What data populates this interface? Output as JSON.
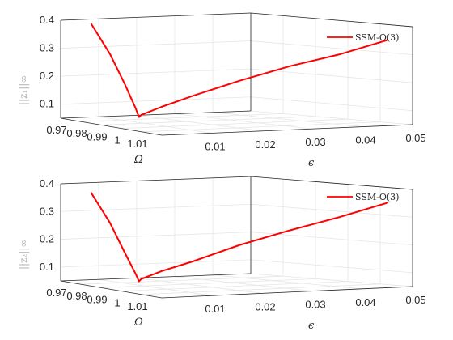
{
  "chart_data": [
    {
      "type": "line",
      "zlabel": "||z₁||∞",
      "xlabel": "Ω",
      "ylabel": "ϵ",
      "xlim": [
        0.97,
        1.02
      ],
      "ylim": [
        0,
        0.05
      ],
      "zlim": [
        0.05,
        0.4
      ],
      "xticks": [
        "0.97",
        "0.98",
        "0.99",
        "1",
        "1.01"
      ],
      "yticks": [
        "0.01",
        "0.02",
        "0.03",
        "0.04",
        "0.05"
      ],
      "zticks": [
        "0.1",
        "0.2",
        "0.3",
        "0.4"
      ],
      "grid": true,
      "legend_position": "top-right",
      "series": [
        {
          "name": "SSM-O(3)",
          "color": "#ff0000",
          "points": [
            [
              0.9815,
              0.0018,
              0.4
            ],
            [
              0.9885,
              0.0028,
              0.3
            ],
            [
              0.9945,
              0.0033,
              0.2
            ],
            [
              0.9992,
              0.0035,
              0.12
            ],
            [
              1.0015,
              0.0032,
              0.09
            ],
            [
              1.003,
              0.003,
              0.1
            ],
            [
              1.006,
              0.006,
              0.13
            ],
            [
              1.0094,
              0.011,
              0.17
            ],
            [
              1.0112,
              0.02,
              0.22
            ],
            [
              1.0118,
              0.03,
              0.265
            ],
            [
              1.0121,
              0.04,
              0.3
            ],
            [
              1.0123,
              0.05,
              0.345
            ]
          ]
        }
      ]
    },
    {
      "type": "line",
      "zlabel": "||z₂||∞",
      "xlabel": "Ω",
      "ylabel": "ϵ",
      "xlim": [
        0.97,
        1.02
      ],
      "ylim": [
        0,
        0.05
      ],
      "zlim": [
        0.05,
        0.4
      ],
      "xticks": [
        "0.97",
        "0.98",
        "0.99",
        "1",
        "1.01"
      ],
      "yticks": [
        "0.01",
        "0.02",
        "0.03",
        "0.04",
        "0.05"
      ],
      "zticks": [
        "0.1",
        "0.2",
        "0.3",
        "0.4"
      ],
      "grid": true,
      "legend_position": "top-right",
      "series": [
        {
          "name": "SSM-O(3)",
          "color": "#ff0000",
          "points": [
            [
              0.9815,
              0.0018,
              0.38
            ],
            [
              0.9885,
              0.0028,
              0.28
            ],
            [
              0.9945,
              0.0033,
              0.18
            ],
            [
              0.9992,
              0.0035,
              0.11
            ],
            [
              1.0015,
              0.0032,
              0.085
            ],
            [
              1.003,
              0.003,
              0.095
            ],
            [
              1.006,
              0.006,
              0.125
            ],
            [
              1.0094,
              0.011,
              0.16
            ],
            [
              1.0112,
              0.02,
              0.215
            ],
            [
              1.0118,
              0.03,
              0.26
            ],
            [
              1.0121,
              0.04,
              0.3
            ],
            [
              1.0123,
              0.05,
              0.345
            ]
          ]
        }
      ]
    }
  ]
}
